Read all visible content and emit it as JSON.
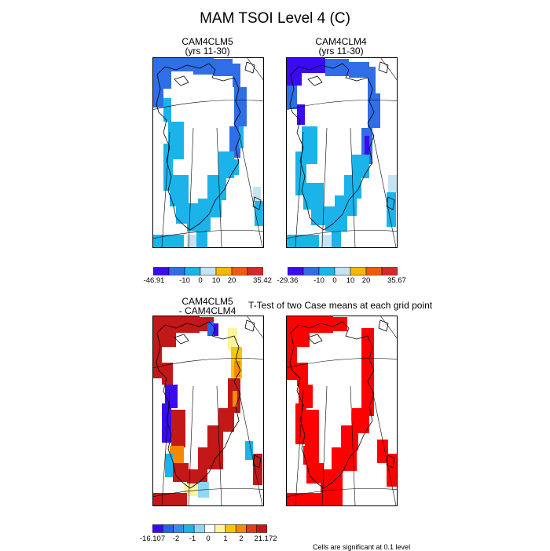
{
  "page_title": "MAM TSOI Level 4 (C)",
  "ttest_title": "T-Test of two Case means at each grid point",
  "footnote": "Cells are significant at 0.1 level",
  "colors": {
    "levels": [
      "#3b0bef",
      "#2f6ee6",
      "#1ab4ea",
      "#c6e3f5",
      "#f6b800",
      "#ef5a10",
      "#d42a2a"
    ],
    "diff_levels": [
      "#3b0bef",
      "#2563e8",
      "#2f8ef0",
      "#1ab4ea",
      "#8ed6f5",
      "#ffffff",
      "#fff4a0",
      "#f6c600",
      "#f58a00",
      "#e53c10",
      "#c21818"
    ],
    "significant": "#ff0000",
    "coastline": "#000000",
    "gridline": "#000000"
  },
  "chart_data": [
    {
      "type": "heatmap",
      "title": [
        "CAM4CLM5",
        "(yrs 11-30)"
      ],
      "colorbar": {
        "min_label": "-46.91",
        "labels": [
          "-10",
          "0",
          "10",
          "20"
        ],
        "max_label": "35.42"
      }
    },
    {
      "type": "heatmap",
      "title": [
        "CAM4CLM4",
        "(yrs 11-30)"
      ],
      "colorbar": {
        "min_label": "-29.36",
        "labels": [
          "-10",
          "0",
          "10",
          "20"
        ],
        "max_label": "35.67"
      }
    },
    {
      "type": "heatmap",
      "title": [
        "CAM4CLM5",
        "- CAM4CLM4"
      ],
      "colorbar": {
        "min_label": "-16.107",
        "labels": [
          "-2",
          "-1",
          "0",
          "1",
          "2"
        ],
        "max_label": "21.172"
      }
    },
    {
      "type": "heatmap",
      "title": [
        "",
        ""
      ],
      "significant_cells": "all"
    }
  ]
}
